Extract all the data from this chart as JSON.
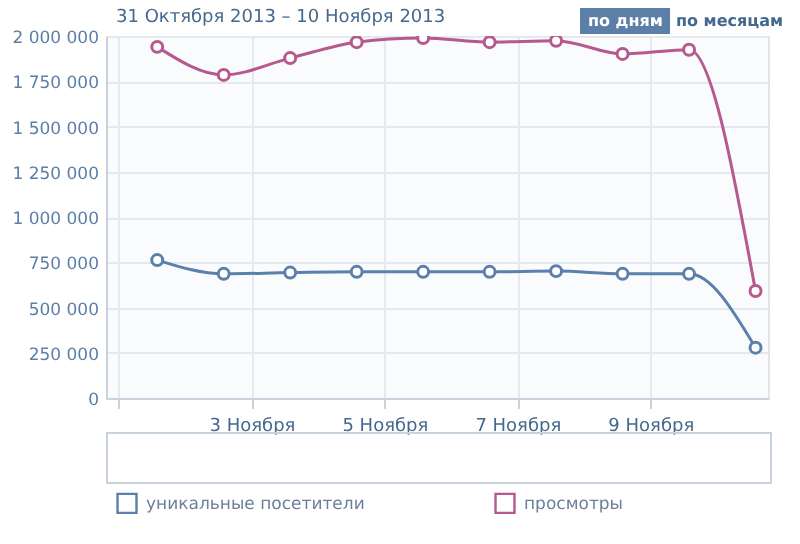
{
  "chart_data": {
    "type": "line",
    "title": "31 Октября 2013 – 10 Ноября 2013",
    "annotations": [
      "по дням",
      "по месяцам"
    ],
    "x": [
      "2013-11-01T14:00",
      "2013-11-02T14:00",
      "2013-11-03T14:00",
      "2013-11-04T14:00",
      "2013-11-05T14:00",
      "2013-11-06T14:00",
      "2013-11-07T14:00",
      "2013-11-08T14:00",
      "2013-11-09T14:00",
      "2013-11-10T14:00"
    ],
    "series": [
      {
        "name": "уникальные посетители",
        "color": "#5b80ab",
        "values": [
          762000,
          686000,
          693000,
          697000,
          697000,
          697000,
          701000,
          686000,
          686000,
          278000
        ]
      },
      {
        "name": "просмотры",
        "color": "#b5598f",
        "values": [
          1940000,
          1785000,
          1878000,
          1966000,
          1989000,
          1966000,
          1974000,
          1901000,
          1924000,
          591000
        ]
      }
    ],
    "xlim": [
      "2013-10-31T19:30",
      "2013-11-10T18:30"
    ],
    "xticks": [
      {
        "value": "2013-11-01",
        "label": null
      },
      {
        "value": "2013-11-03",
        "label": "3 Ноября"
      },
      {
        "value": "2013-11-05",
        "label": "5 Ноября"
      },
      {
        "value": "2013-11-07",
        "label": "7 Ноября"
      },
      {
        "value": "2013-11-09",
        "label": "9 Ноября"
      }
    ],
    "ylim": [
      0,
      2000000
    ],
    "yticks": [
      {
        "value": 0,
        "label": "0"
      },
      {
        "value": 250000,
        "label": "250 000"
      },
      {
        "value": 500000,
        "label": "500 000"
      },
      {
        "value": 750000,
        "label": "750 000"
      },
      {
        "value": 1000000,
        "label": "1 000 000"
      },
      {
        "value": 1250000,
        "label": "1 250 000"
      },
      {
        "value": 1500000,
        "label": "1 500 000"
      },
      {
        "value": 1750000,
        "label": "1 750 000"
      },
      {
        "value": 2000000,
        "label": "2 000 000"
      }
    ],
    "grid": true,
    "legend": "bottom",
    "marker": "circle",
    "line_style": "solid"
  }
}
